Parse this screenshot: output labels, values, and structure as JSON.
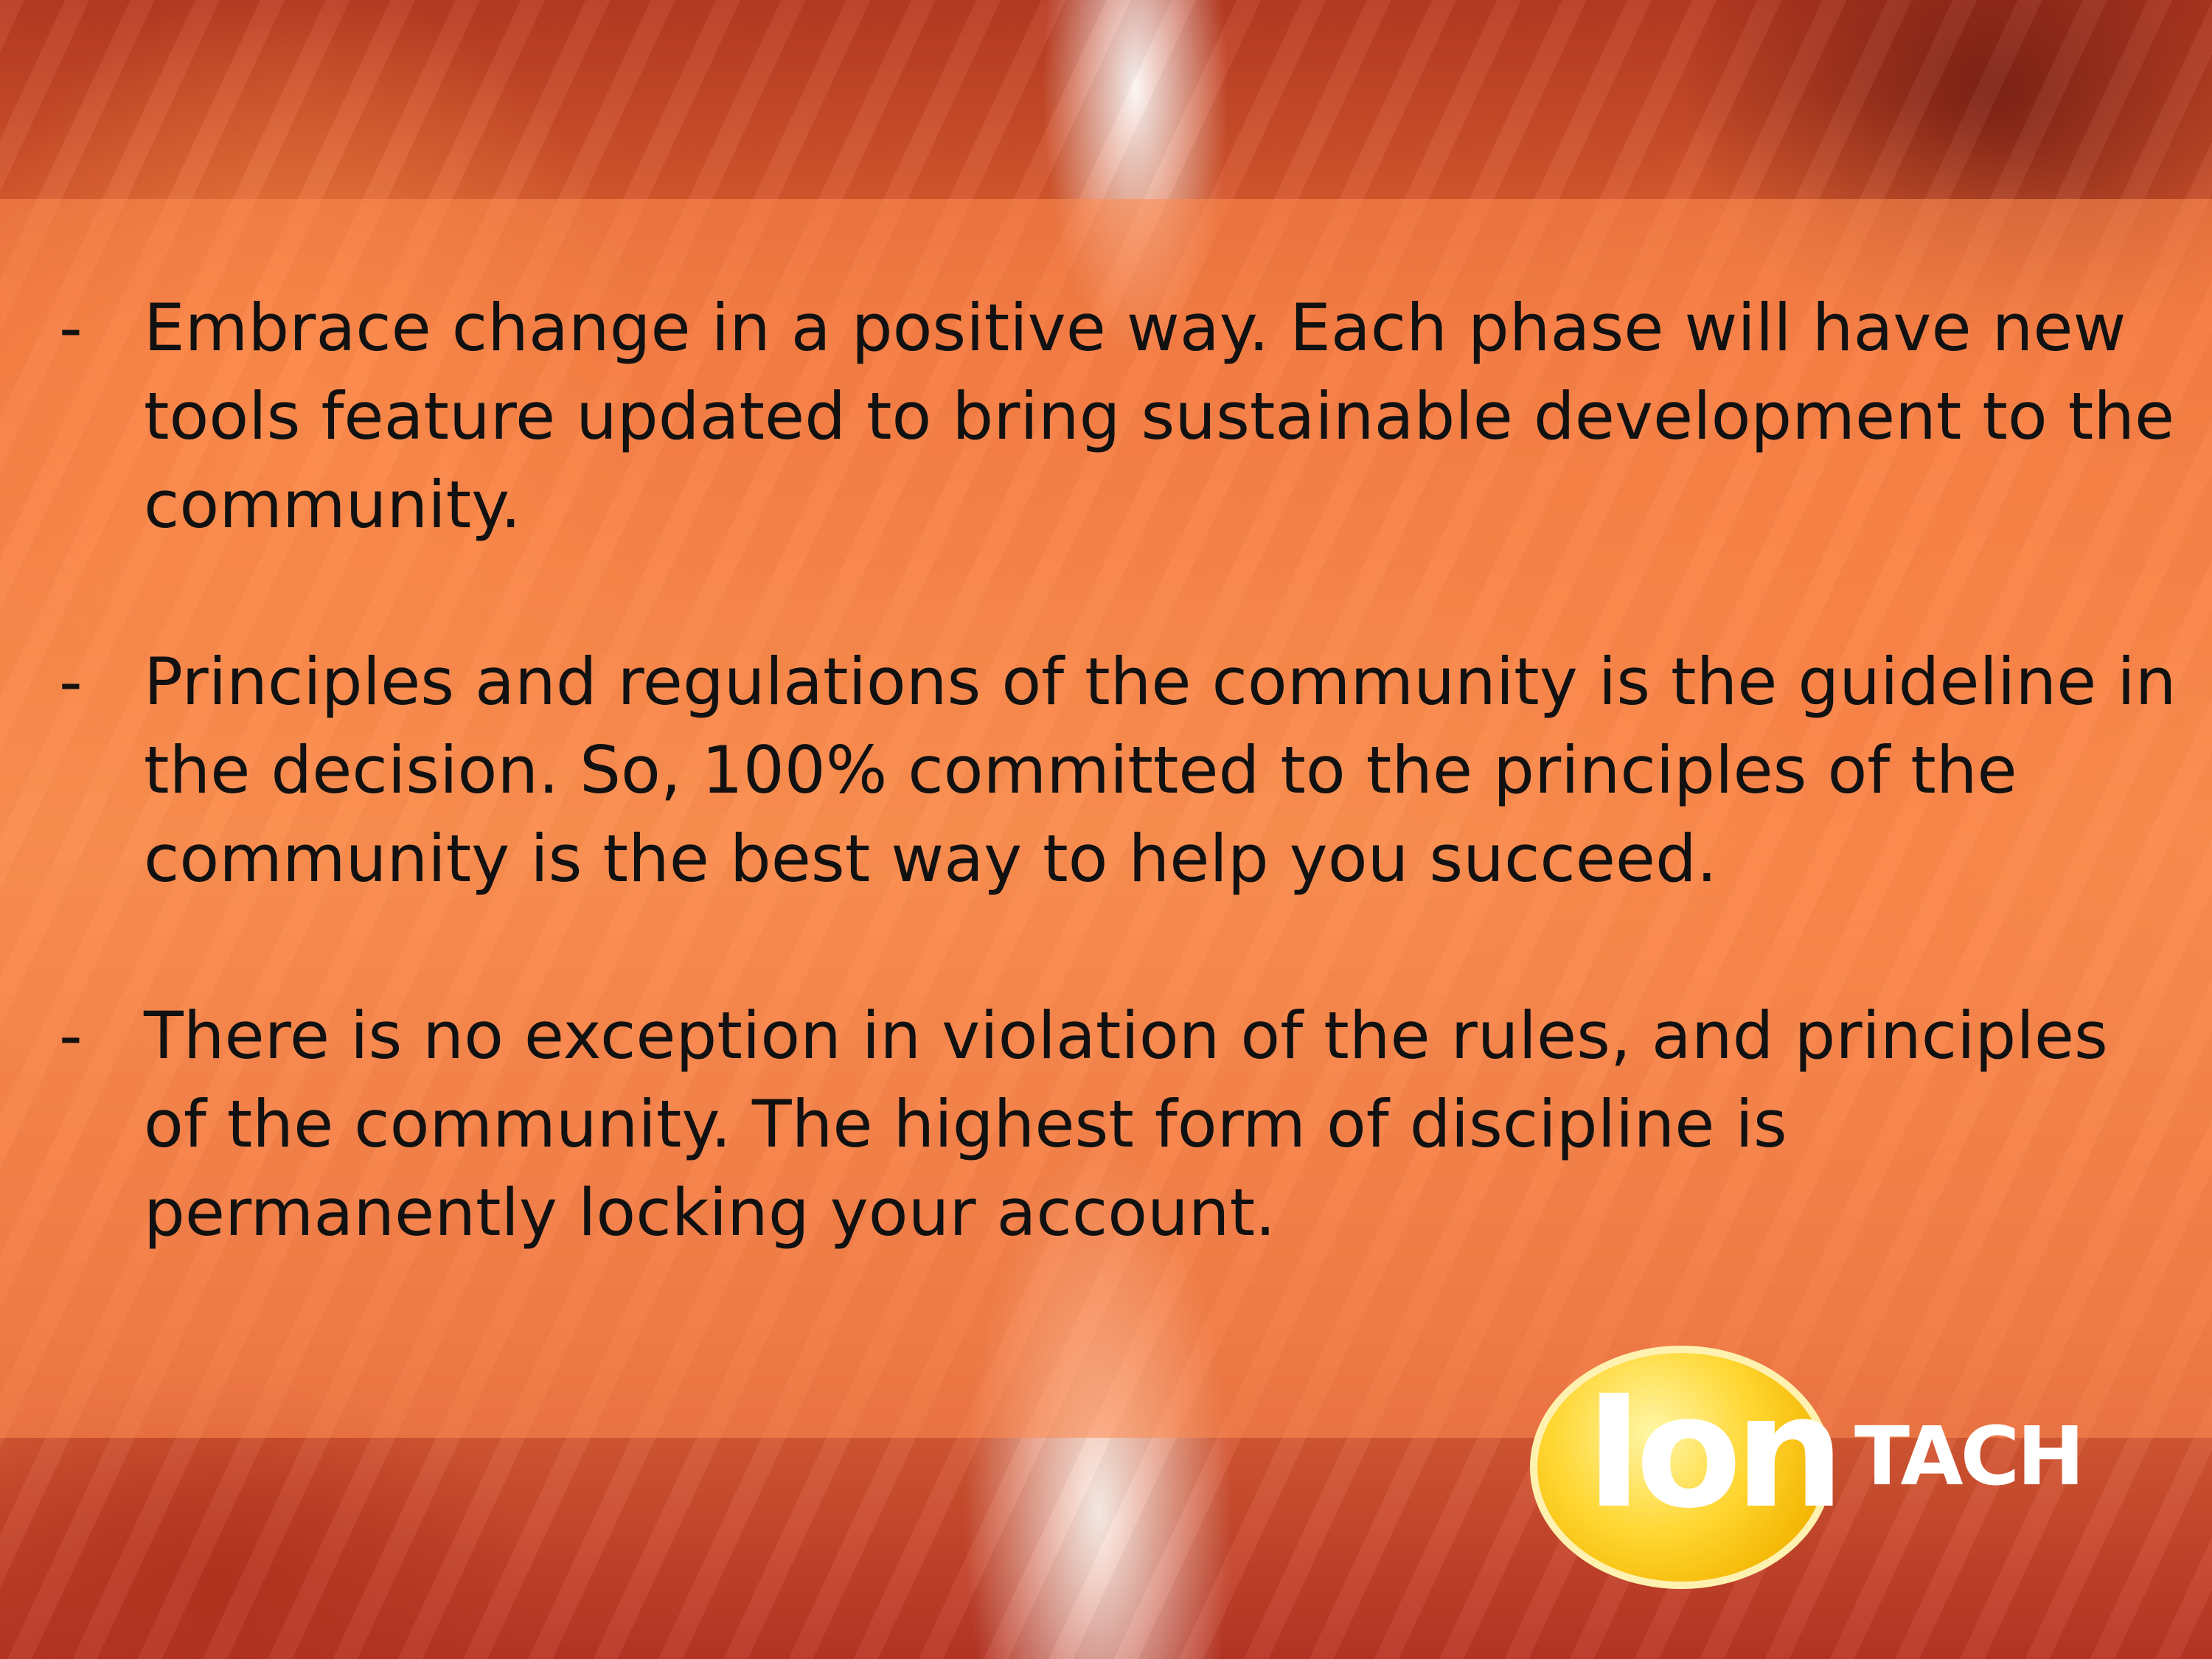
{
  "slide": {
    "bullets": [
      {
        "marker": "-",
        "text": "Embrace change in a positive way. Each phase will have new tools feature updated to bring sustainable development to the community."
      },
      {
        "marker": "-",
        "text": "Principles and regulations of the community is the guideline in the decision. So, 100% committed to the principles of the community is the best way to help you succeed."
      },
      {
        "marker": "-",
        "text": "There is no exception in violation of the rules, and principles of the community. The highest form of discipline is permanently locking your account."
      }
    ],
    "logo": {
      "part1": "Ion",
      "part2": "TACH"
    }
  }
}
